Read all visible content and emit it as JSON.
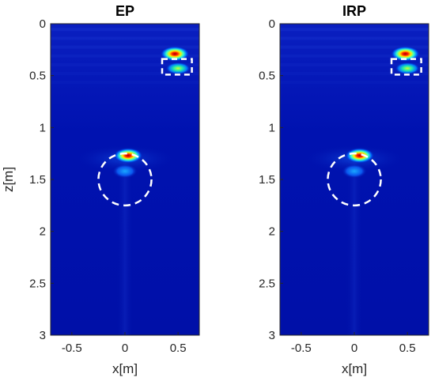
{
  "chart_data": [
    {
      "type": "heatmap",
      "title": "EP",
      "xlabel": "x[m]",
      "ylabel": "z[m]",
      "xlim": [
        -0.7,
        0.7
      ],
      "ylim": [
        3,
        0
      ],
      "xticks": [
        "-0.5",
        "0",
        "0.5"
      ],
      "yticks": [
        "0",
        "0.5",
        "1",
        "1.5",
        "2",
        "2.5",
        "3"
      ],
      "colormap": "jet",
      "grid": false,
      "hotspots": [
        {
          "x": 0.47,
          "z": 0.29,
          "intensity": 1.0
        },
        {
          "x": 0.5,
          "z": 0.43,
          "intensity": 0.55
        },
        {
          "x": 0.03,
          "z": 1.27,
          "intensity": 1.0
        },
        {
          "x": 0.0,
          "z": 1.42,
          "intensity": 0.4
        }
      ],
      "annotations": [
        {
          "shape": "dashed-rectangle",
          "x": [
            0.35,
            0.63
          ],
          "z": [
            0.34,
            0.49
          ],
          "color": "#ffffff"
        },
        {
          "shape": "dashed-circle",
          "cx": 0.0,
          "cz": 1.5,
          "r": 0.25,
          "color": "#ffffff"
        }
      ]
    },
    {
      "type": "heatmap",
      "title": "IRP",
      "xlabel": "x[m]",
      "ylabel": "",
      "xlim": [
        -0.7,
        0.7
      ],
      "ylim": [
        3,
        0
      ],
      "xticks": [
        "-0.5",
        "0",
        "0.5"
      ],
      "yticks": [
        "0",
        "0.5",
        "1",
        "1.5",
        "2",
        "2.5",
        "3"
      ],
      "colormap": "jet",
      "grid": false,
      "hotspots": [
        {
          "x": 0.48,
          "z": 0.29,
          "intensity": 1.0
        },
        {
          "x": 0.5,
          "z": 0.43,
          "intensity": 0.55
        },
        {
          "x": 0.05,
          "z": 1.27,
          "intensity": 1.0
        },
        {
          "x": 0.0,
          "z": 1.42,
          "intensity": 0.35
        }
      ],
      "annotations": [
        {
          "shape": "dashed-rectangle",
          "x": [
            0.35,
            0.63
          ],
          "z": [
            0.34,
            0.49
          ],
          "color": "#ffffff"
        },
        {
          "shape": "dashed-circle",
          "cx": 0.0,
          "cz": 1.5,
          "r": 0.25,
          "color": "#ffffff"
        }
      ]
    }
  ]
}
